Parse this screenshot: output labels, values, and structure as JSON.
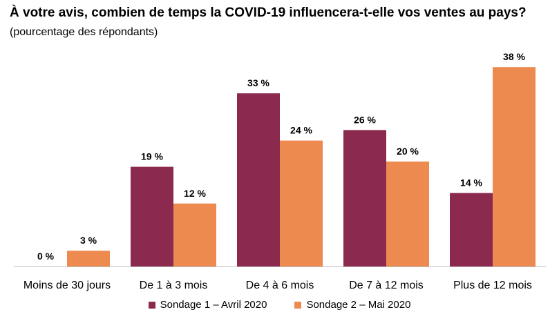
{
  "chart_data": {
    "type": "bar",
    "title": "À votre avis, combien de temps la COVID-19 influencera-t-elle vos ventes au pays?",
    "subtitle": "(pourcentage des répondants)",
    "categories": [
      "Moins de 30 jours",
      "De 1 à 3 mois",
      "De 4 à 6 mois",
      "De 7 à 12 mois",
      "Plus de 12 mois"
    ],
    "series": [
      {
        "name": "Sondage 1 – Avril 2020",
        "color": "#8B2A4E",
        "values": [
          0,
          19,
          33,
          26,
          14
        ],
        "labels": [
          "0 %",
          "19 %",
          "33 %",
          "26 %",
          "14 %"
        ]
      },
      {
        "name": "Sondage 2 – Mai 2020",
        "color": "#EC8A50",
        "values": [
          3,
          12,
          24,
          20,
          38
        ],
        "labels": [
          "3 %",
          "12 %",
          "24 %",
          "20 %",
          "38 %"
        ]
      }
    ],
    "xlabel": "",
    "ylabel": "",
    "ylim": [
      0,
      40
    ],
    "grid": false,
    "legend_position": "bottom"
  }
}
